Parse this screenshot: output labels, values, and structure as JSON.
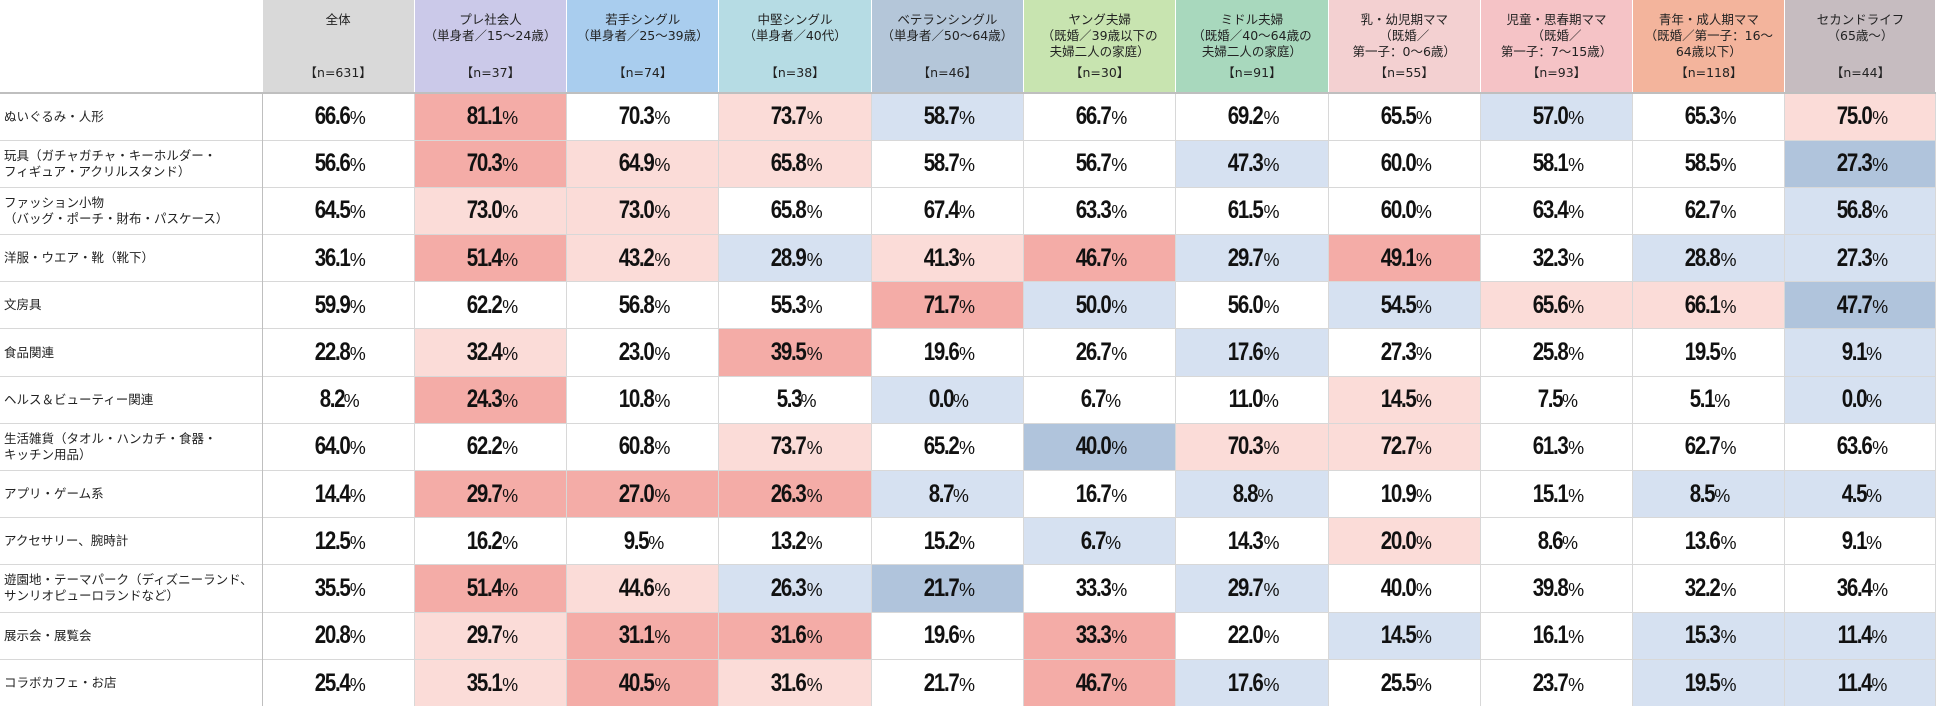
{
  "chart_data": {
    "type": "heatmap",
    "unit": "%",
    "columns": [
      {
        "name": "全体",
        "n": "【n=631】",
        "color": "#d9d9d9"
      },
      {
        "name": "プレ社会人\n（単身者／15～24歳）",
        "n": "【n=37】",
        "color": "#cbc9e9"
      },
      {
        "name": "若手シングル\n（単身者／25～39歳）",
        "n": "【n=74】",
        "color": "#a9cdee"
      },
      {
        "name": "中堅シングル\n（単身者／40代）",
        "n": "【n=38】",
        "color": "#b6dce4"
      },
      {
        "name": "ベテランシングル\n（単身者／50～64歳）",
        "n": "【n=46】",
        "color": "#b4c6d9"
      },
      {
        "name": "ヤング夫婦\n（既婚／39歳以下の\n夫婦二人の家庭）",
        "n": "【n=30】",
        "color": "#c8e4b0"
      },
      {
        "name": "ミドル夫婦\n（既婚／40～64歳の\n夫婦二人の家庭）",
        "n": "【n=91】",
        "color": "#a8d8bd"
      },
      {
        "name": "乳・幼児期ママ\n（既婚／\n第一子：0～6歳）",
        "n": "【n=55】",
        "color": "#f3d0d1"
      },
      {
        "name": "児童・思春期ママ\n（既婚／\n第一子：7～15歳）",
        "n": "【n=93】",
        "color": "#f5c3c6"
      },
      {
        "name": "青年・成人期ママ\n（既婚／第一子：16～\n64歳以下）",
        "n": "【n=118】",
        "color": "#f3b49c"
      },
      {
        "name": "セカンドライフ\n（65歳～）",
        "n": "【n=44】",
        "color": "#c6bcc0"
      }
    ],
    "rows": [
      {
        "label": "ぬいぐるみ・人形",
        "values": [
          66.6,
          81.1,
          70.3,
          73.7,
          58.7,
          66.7,
          69.2,
          65.5,
          57.0,
          65.3,
          75.0
        ],
        "levels": [
          0,
          2,
          0,
          1,
          -1,
          0,
          0,
          0,
          -1,
          0,
          1
        ]
      },
      {
        "label": "玩具（ガチャガチャ・キーホルダー・\nフィギュア・アクリルスタンド）",
        "values": [
          56.6,
          70.3,
          64.9,
          65.8,
          58.7,
          56.7,
          47.3,
          60.0,
          58.1,
          58.5,
          27.3
        ],
        "levels": [
          0,
          2,
          1,
          1,
          0,
          0,
          -1,
          0,
          0,
          0,
          -2
        ]
      },
      {
        "label": "ファッション小物\n（バッグ・ポーチ・財布・パスケース）",
        "values": [
          64.5,
          73.0,
          73.0,
          65.8,
          67.4,
          63.3,
          61.5,
          60.0,
          63.4,
          62.7,
          56.8
        ],
        "levels": [
          0,
          1,
          1,
          0,
          0,
          0,
          0,
          0,
          0,
          0,
          -1
        ]
      },
      {
        "label": "洋服・ウエア・靴（靴下）",
        "values": [
          36.1,
          51.4,
          43.2,
          28.9,
          41.3,
          46.7,
          29.7,
          49.1,
          32.3,
          28.8,
          27.3
        ],
        "levels": [
          0,
          2,
          1,
          -1,
          1,
          2,
          -1,
          2,
          0,
          -1,
          -1
        ]
      },
      {
        "label": "文房具",
        "values": [
          59.9,
          62.2,
          56.8,
          55.3,
          71.7,
          50.0,
          56.0,
          54.5,
          65.6,
          66.1,
          47.7
        ],
        "levels": [
          0,
          0,
          0,
          0,
          2,
          -1,
          0,
          -1,
          1,
          1,
          -2
        ]
      },
      {
        "label": "食品関連",
        "values": [
          22.8,
          32.4,
          23.0,
          39.5,
          19.6,
          26.7,
          17.6,
          27.3,
          25.8,
          19.5,
          9.1
        ],
        "levels": [
          0,
          1,
          0,
          2,
          0,
          0,
          -1,
          0,
          0,
          0,
          -1
        ]
      },
      {
        "label": "ヘルス＆ビューティー関連",
        "values": [
          8.2,
          24.3,
          10.8,
          5.3,
          0.0,
          6.7,
          11.0,
          14.5,
          7.5,
          5.1,
          0.0
        ],
        "levels": [
          0,
          2,
          0,
          0,
          -1,
          0,
          0,
          1,
          0,
          0,
          -1
        ]
      },
      {
        "label": "生活雑貨（タオル・ハンカチ・食器・\nキッチン用品）",
        "values": [
          64.0,
          62.2,
          60.8,
          73.7,
          65.2,
          40.0,
          70.3,
          72.7,
          61.3,
          62.7,
          63.6
        ],
        "levels": [
          0,
          0,
          0,
          1,
          0,
          -2,
          1,
          1,
          0,
          0,
          0
        ]
      },
      {
        "label": "アプリ・ゲーム系",
        "values": [
          14.4,
          29.7,
          27.0,
          26.3,
          8.7,
          16.7,
          8.8,
          10.9,
          15.1,
          8.5,
          4.5
        ],
        "levels": [
          0,
          2,
          2,
          2,
          -1,
          0,
          -1,
          0,
          0,
          -1,
          -1
        ]
      },
      {
        "label": "アクセサリー、腕時計",
        "values": [
          12.5,
          16.2,
          9.5,
          13.2,
          15.2,
          6.7,
          14.3,
          20.0,
          8.6,
          13.6,
          9.1
        ],
        "levels": [
          0,
          0,
          0,
          0,
          0,
          -1,
          0,
          1,
          0,
          0,
          0
        ]
      },
      {
        "label": "遊園地・テーマパーク（ディズニーランド、\nサンリオピューロランドなど）",
        "values": [
          35.5,
          51.4,
          44.6,
          26.3,
          21.7,
          33.3,
          29.7,
          40.0,
          39.8,
          32.2,
          36.4
        ],
        "levels": [
          0,
          2,
          1,
          -1,
          -2,
          0,
          -1,
          0,
          0,
          0,
          0
        ]
      },
      {
        "label": "展示会・展覧会",
        "values": [
          20.8,
          29.7,
          31.1,
          31.6,
          19.6,
          33.3,
          22.0,
          14.5,
          16.1,
          15.3,
          11.4
        ],
        "levels": [
          0,
          1,
          2,
          2,
          0,
          2,
          0,
          -1,
          0,
          -1,
          -1
        ]
      },
      {
        "label": "コラボカフェ・お店",
        "values": [
          25.4,
          35.1,
          40.5,
          31.6,
          21.7,
          46.7,
          17.6,
          25.5,
          23.7,
          19.5,
          11.4
        ],
        "levels": [
          0,
          1,
          2,
          1,
          0,
          2,
          -1,
          0,
          0,
          -1,
          -1
        ]
      }
    ],
    "level_colors": {
      "2": "#f4aca7",
      "1": "#fbdcd8",
      "0": "#ffffff",
      "-1": "#d6e1f1",
      "-2": "#b0c4dc"
    }
  }
}
